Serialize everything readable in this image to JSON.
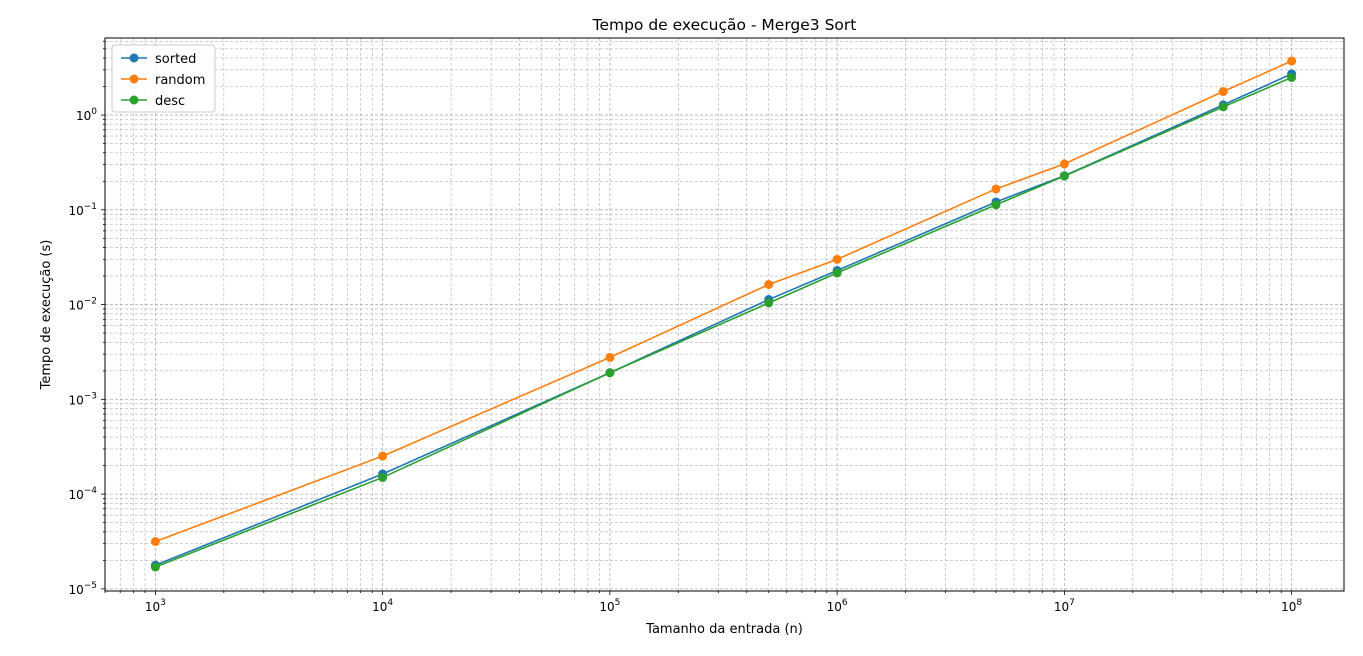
{
  "chart_data": {
    "type": "line",
    "title": "Tempo de execução - Merge3 Sort",
    "xlabel": "Tamanho da entrada (n)",
    "ylabel": "Tempo de execução (s)",
    "xscale": "log",
    "yscale": "log",
    "xlim": [
      600,
      170000000
    ],
    "ylim": [
      9.5e-06,
      6.5
    ],
    "grid": true,
    "legend_position": "top-left",
    "x_ticks": [
      {
        "value": 1000,
        "base": "10",
        "exp": "3"
      },
      {
        "value": 10000,
        "base": "10",
        "exp": "4"
      },
      {
        "value": 100000,
        "base": "10",
        "exp": "5"
      },
      {
        "value": 1000000,
        "base": "10",
        "exp": "6"
      },
      {
        "value": 10000000,
        "base": "10",
        "exp": "7"
      },
      {
        "value": 100000000,
        "base": "10",
        "exp": "8"
      }
    ],
    "y_ticks": [
      {
        "value": 1e-05,
        "base": "10",
        "exp": "−5"
      },
      {
        "value": 0.0001,
        "base": "10",
        "exp": "−4"
      },
      {
        "value": 0.001,
        "base": "10",
        "exp": "−3"
      },
      {
        "value": 0.01,
        "base": "10",
        "exp": "−2"
      },
      {
        "value": 0.1,
        "base": "10",
        "exp": "−1"
      },
      {
        "value": 1,
        "base": "10",
        "exp": "0"
      }
    ],
    "x": [
      1000,
      10000,
      100000,
      500000,
      1000000,
      5000000,
      10000000,
      50000000,
      100000000
    ],
    "series": [
      {
        "name": "sorted",
        "color": "#1f77b4",
        "values": [
          1.78e-05,
          0.000163,
          0.00191,
          0.0113,
          0.0229,
          0.121,
          0.229,
          1.28,
          2.72
        ]
      },
      {
        "name": "random",
        "color": "#ff7f0e",
        "values": [
          3.16e-05,
          0.000252,
          0.00277,
          0.0163,
          0.03,
          0.166,
          0.305,
          1.77,
          3.72
        ]
      },
      {
        "name": "desc",
        "color": "#2ca02c",
        "values": [
          1.7e-05,
          0.00015,
          0.00191,
          0.0104,
          0.0216,
          0.113,
          0.227,
          1.22,
          2.49
        ]
      }
    ]
  }
}
